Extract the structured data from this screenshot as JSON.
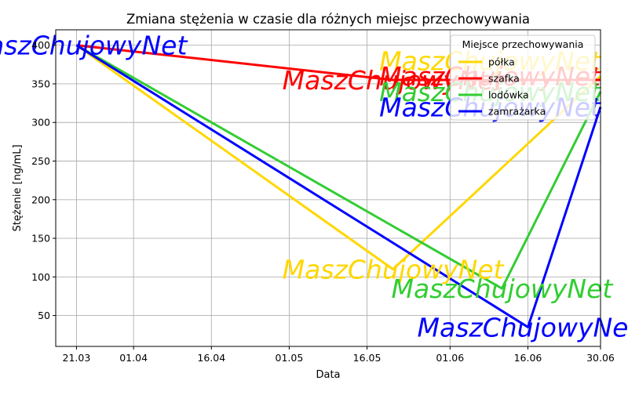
{
  "chart_data": {
    "type": "line",
    "title": "Zmiana stężenia w czasie dla różnych miejsc przechowywania",
    "xlabel": "Data",
    "ylabel": "Stężenie [ng/mL]",
    "x_ticks": [
      {
        "date": "2023-03-21",
        "label": "21.03"
      },
      {
        "date": "2023-04-01",
        "label": "01.04"
      },
      {
        "date": "2023-04-16",
        "label": "16.04"
      },
      {
        "date": "2023-05-01",
        "label": "01.05"
      },
      {
        "date": "2023-05-16",
        "label": "16.05"
      },
      {
        "date": "2023-06-01",
        "label": "01.06"
      },
      {
        "date": "2023-06-16",
        "label": "16.06"
      },
      {
        "date": "2023-06-30",
        "label": "30.06"
      }
    ],
    "xlim": [
      "2023-03-17",
      "2023-06-30"
    ],
    "y_ticks": [
      50,
      100,
      150,
      200,
      250,
      300,
      350,
      400
    ],
    "ylim": [
      10,
      420
    ],
    "grid": true,
    "legend": {
      "title": "Miejsce przechowywania",
      "placement": "top-right"
    },
    "series": [
      {
        "name": "półka",
        "color": "#ffd700",
        "points": [
          {
            "x": "2023-03-21",
            "y": 400
          },
          {
            "x": "2023-05-21",
            "y": 110
          },
          {
            "x": "2023-06-30",
            "y": 360
          }
        ]
      },
      {
        "name": "szafka",
        "color": "#ff0000",
        "points": [
          {
            "x": "2023-03-21",
            "y": 400
          },
          {
            "x": "2023-05-21",
            "y": 355
          },
          {
            "x": "2023-06-30",
            "y": 355
          }
        ]
      },
      {
        "name": "lodówka",
        "color": "#32cd32",
        "points": [
          {
            "x": "2023-03-21",
            "y": 400
          },
          {
            "x": "2023-06-11",
            "y": 85
          },
          {
            "x": "2023-06-30",
            "y": 340
          }
        ]
      },
      {
        "name": "zamrażarka",
        "color": "#0000ff",
        "points": [
          {
            "x": "2023-03-21",
            "y": 400
          },
          {
            "x": "2023-06-16",
            "y": 35
          },
          {
            "x": "2023-06-30",
            "y": 320
          }
        ]
      }
    ],
    "annotations": [
      {
        "text": "MaszChujowyNet",
        "color": "#0000ff",
        "x": "2023-03-21",
        "y": 400,
        "anchor": "middle"
      },
      {
        "text": "MaszChujowyNet",
        "color": "#ffd700",
        "x": "2023-05-21",
        "y": 110,
        "anchor": "middle"
      },
      {
        "text": "MaszChujowyNet",
        "color": "#ff0000",
        "x": "2023-05-21",
        "y": 355,
        "anchor": "middle"
      },
      {
        "text": "MaszChujowyNet",
        "color": "#32cd32",
        "x": "2023-06-11",
        "y": 85,
        "anchor": "middle"
      },
      {
        "text": "MaszChujowyNet",
        "color": "#0000ff",
        "x": "2023-06-16",
        "y": 35,
        "anchor": "middle"
      },
      {
        "text": "MaszChujowyNet",
        "color": "#ffd700",
        "x": "2023-06-30",
        "y": 380,
        "anchor": "end"
      },
      {
        "text": "MaszChujowyNet",
        "color": "#ff0000",
        "x": "2023-06-30",
        "y": 360,
        "anchor": "end"
      },
      {
        "text": "MaszChujowyNet",
        "color": "#32cd32",
        "x": "2023-06-30",
        "y": 340,
        "anchor": "end"
      },
      {
        "text": "MaszChujowyNet",
        "color": "#0000ff",
        "x": "2023-06-30",
        "y": 320,
        "anchor": "end"
      }
    ]
  }
}
